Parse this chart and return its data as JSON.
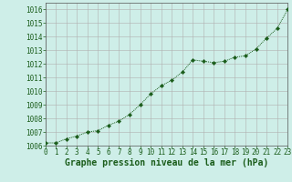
{
  "x": [
    0,
    1,
    2,
    3,
    4,
    5,
    6,
    7,
    8,
    9,
    10,
    11,
    12,
    13,
    14,
    15,
    16,
    17,
    18,
    19,
    20,
    21,
    22,
    23
  ],
  "y": [
    1006.2,
    1006.2,
    1006.5,
    1006.7,
    1007.0,
    1007.1,
    1007.5,
    1007.8,
    1008.3,
    1009.0,
    1009.8,
    1010.4,
    1010.8,
    1011.4,
    1012.3,
    1012.2,
    1012.1,
    1012.2,
    1012.5,
    1012.6,
    1013.1,
    1013.9,
    1014.6,
    1016.0
  ],
  "xlim": [
    0,
    23
  ],
  "ylim": [
    1006.0,
    1016.5
  ],
  "yticks": [
    1006,
    1007,
    1008,
    1009,
    1010,
    1011,
    1012,
    1013,
    1014,
    1015,
    1016
  ],
  "xticks": [
    0,
    1,
    2,
    3,
    4,
    5,
    6,
    7,
    8,
    9,
    10,
    11,
    12,
    13,
    14,
    15,
    16,
    17,
    18,
    19,
    20,
    21,
    22,
    23
  ],
  "xlabel": "Graphe pression niveau de la mer (hPa)",
  "line_color": "#1a5c1a",
  "marker_color": "#1a5c1a",
  "bg_color": "#ceeee8",
  "grid_color": "#b0b0b0",
  "tick_label_color": "#1a5c1a",
  "xlabel_color": "#1a5c1a",
  "xlabel_fontsize": 7.0,
  "tick_fontsize": 5.5
}
